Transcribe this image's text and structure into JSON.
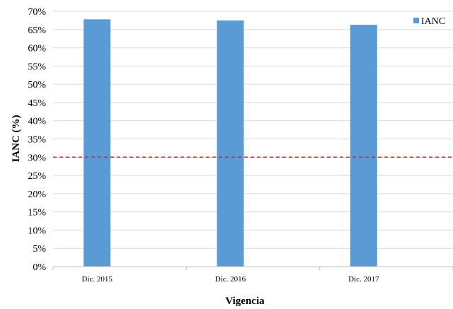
{
  "chart_data": {
    "type": "bar",
    "categories": [
      "Dic. 2015",
      "Dic. 2016",
      "Dic. 2017"
    ],
    "series": [
      {
        "name": "IANC",
        "values": [
          67.8,
          67.5,
          66.3
        ],
        "color": "#5b9bd5"
      }
    ],
    "xlabel": "Vigencia",
    "ylabel": "IANC (%)",
    "ylim": [
      0,
      70
    ],
    "ytick_step": 5,
    "ytick_labels": [
      "0%",
      "5%",
      "10%",
      "15%",
      "20%",
      "25%",
      "30%",
      "35%",
      "40%",
      "45%",
      "50%",
      "55%",
      "60%",
      "65%",
      "70%"
    ],
    "reference_line": {
      "value": 30,
      "color": "#e0262a",
      "style": "dashed"
    },
    "grid": true,
    "legend": {
      "position": "top-right",
      "label": "IANC"
    }
  }
}
